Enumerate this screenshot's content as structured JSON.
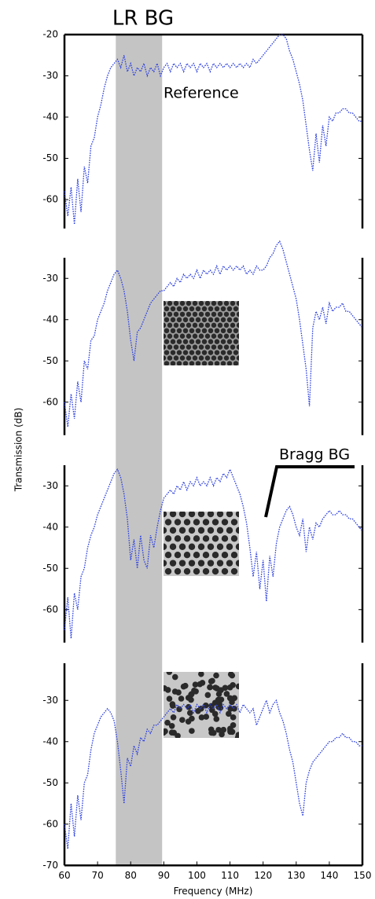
{
  "ylabel": "Transmission (dB)",
  "shaded_band": {
    "xlim": [
      75.5,
      89.5
    ],
    "label": "LR BG"
  },
  "chart_data": [
    {
      "type": "line",
      "annotation": "Reference",
      "color": "#2b3fe0",
      "xlim": [
        60,
        150
      ],
      "ylim": [
        -67,
        -20
      ],
      "yticks": [
        -20,
        -30,
        -40,
        -50,
        -60
      ],
      "x": [
        60,
        61,
        62,
        63,
        64,
        65,
        66,
        67,
        68,
        69,
        70,
        71,
        72,
        73,
        74,
        75,
        76,
        77,
        78,
        79,
        80,
        81,
        82,
        83,
        84,
        85,
        86,
        87,
        88,
        89,
        90,
        91,
        92,
        93,
        94,
        95,
        96,
        97,
        98,
        99,
        100,
        101,
        102,
        103,
        104,
        105,
        106,
        107,
        108,
        109,
        110,
        111,
        112,
        113,
        114,
        115,
        116,
        117,
        118,
        119,
        120,
        121,
        122,
        123,
        124,
        125,
        126,
        127,
        128,
        129,
        130,
        131,
        132,
        133,
        134,
        135,
        136,
        137,
        138,
        139,
        140,
        141,
        142,
        143,
        144,
        145,
        146,
        147,
        148,
        149,
        150
      ],
      "values": [
        -58,
        -64,
        -57,
        -66,
        -55,
        -63,
        -52,
        -56,
        -47,
        -45,
        -40,
        -37,
        -33,
        -30,
        -28,
        -27,
        -26,
        -28,
        -25,
        -29,
        -27,
        -30,
        -28,
        -29,
        -27,
        -30,
        -28,
        -29,
        -27,
        -30,
        -28,
        -27,
        -29,
        -27,
        -28,
        -27,
        -29,
        -27,
        -28,
        -27,
        -29,
        -27,
        -28,
        -27,
        -29,
        -27,
        -28,
        -27,
        -28,
        -27,
        -28,
        -27,
        -28,
        -27,
        -28,
        -27,
        -28,
        -26,
        -27,
        -26,
        -25,
        -24,
        -23,
        -22,
        -21,
        -20,
        -20,
        -21,
        -24,
        -26,
        -29,
        -32,
        -36,
        -42,
        -48,
        -53,
        -44,
        -51,
        -42,
        -47,
        -40,
        -41,
        -39,
        -39,
        -38,
        -38,
        -39,
        -39,
        -40,
        -41,
        -41
      ]
    },
    {
      "type": "line",
      "color": "#2b3fe0",
      "xlim": [
        60,
        150
      ],
      "ylim": [
        -68,
        -25
      ],
      "yticks": [
        -30,
        -40,
        -50,
        -60
      ],
      "x": [
        60,
        61,
        62,
        63,
        64,
        65,
        66,
        67,
        68,
        69,
        70,
        71,
        72,
        73,
        74,
        75,
        76,
        77,
        78,
        79,
        80,
        81,
        82,
        83,
        84,
        85,
        86,
        87,
        88,
        89,
        90,
        91,
        92,
        93,
        94,
        95,
        96,
        97,
        98,
        99,
        100,
        101,
        102,
        103,
        104,
        105,
        106,
        107,
        108,
        109,
        110,
        111,
        112,
        113,
        114,
        115,
        116,
        117,
        118,
        119,
        120,
        121,
        122,
        123,
        124,
        125,
        126,
        127,
        128,
        129,
        130,
        131,
        132,
        133,
        134,
        135,
        136,
        137,
        138,
        139,
        140,
        141,
        142,
        143,
        144,
        145,
        146,
        147,
        148,
        149,
        150
      ],
      "values": [
        -60,
        -66,
        -58,
        -64,
        -55,
        -60,
        -50,
        -52,
        -45,
        -44,
        -40,
        -38,
        -36,
        -33,
        -31,
        -29,
        -28,
        -30,
        -33,
        -38,
        -45,
        -50,
        -43,
        -42,
        -40,
        -38,
        -36,
        -35,
        -34,
        -33,
        -33,
        -32,
        -31,
        -32,
        -30,
        -31,
        -29,
        -30,
        -29,
        -30,
        -28,
        -30,
        -28,
        -29,
        -28,
        -29,
        -27,
        -29,
        -27,
        -28,
        -27,
        -28,
        -27,
        -28,
        -27,
        -29,
        -28,
        -29,
        -27,
        -28,
        -28,
        -27,
        -25,
        -24,
        -22,
        -21,
        -23,
        -26,
        -29,
        -32,
        -35,
        -40,
        -46,
        -52,
        -61,
        -42,
        -38,
        -40,
        -37,
        -41,
        -36,
        -38,
        -37,
        -37,
        -36,
        -38,
        -38,
        -39,
        -40,
        -41,
        -42
      ]
    },
    {
      "type": "line",
      "annotation": "Bragg BG",
      "color": "#2b3fe0",
      "xlim": [
        60,
        150
      ],
      "ylim": [
        -68,
        -25
      ],
      "yticks": [
        -30,
        -40,
        -50,
        -60
      ],
      "x": [
        60,
        61,
        62,
        63,
        64,
        65,
        66,
        67,
        68,
        69,
        70,
        71,
        72,
        73,
        74,
        75,
        76,
        77,
        78,
        79,
        80,
        81,
        82,
        83,
        84,
        85,
        86,
        87,
        88,
        89,
        90,
        91,
        92,
        93,
        94,
        95,
        96,
        97,
        98,
        99,
        100,
        101,
        102,
        103,
        104,
        105,
        106,
        107,
        108,
        109,
        110,
        111,
        112,
        113,
        114,
        115,
        116,
        117,
        118,
        119,
        120,
        121,
        122,
        123,
        124,
        125,
        126,
        127,
        128,
        129,
        130,
        131,
        132,
        133,
        134,
        135,
        136,
        137,
        138,
        139,
        140,
        141,
        142,
        143,
        144,
        145,
        146,
        147,
        148,
        149,
        150
      ],
      "values": [
        -65,
        -57,
        -67,
        -56,
        -60,
        -52,
        -50,
        -45,
        -42,
        -40,
        -37,
        -35,
        -33,
        -31,
        -29,
        -27,
        -26,
        -28,
        -32,
        -38,
        -48,
        -43,
        -50,
        -42,
        -48,
        -50,
        -42,
        -45,
        -40,
        -36,
        -33,
        -32,
        -31,
        -32,
        -30,
        -31,
        -29,
        -31,
        -29,
        -30,
        -28,
        -30,
        -29,
        -30,
        -28,
        -30,
        -28,
        -29,
        -27,
        -28,
        -26,
        -28,
        -30,
        -32,
        -35,
        -39,
        -45,
        -52,
        -46,
        -55,
        -48,
        -58,
        -47,
        -52,
        -44,
        -40,
        -38,
        -36,
        -35,
        -37,
        -40,
        -42,
        -38,
        -46,
        -40,
        -43,
        -39,
        -40,
        -38,
        -37,
        -36,
        -37,
        -37,
        -36,
        -37,
        -37,
        -38,
        -38,
        -39,
        -40,
        -41
      ]
    },
    {
      "type": "line",
      "color": "#2b3fe0",
      "xlim": [
        60,
        150
      ],
      "ylim": [
        -70,
        -21
      ],
      "yticks": [
        -30,
        -40,
        -50,
        -60,
        -70
      ],
      "xticks": [
        60,
        70,
        80,
        90,
        100,
        110,
        120,
        130,
        140,
        150
      ],
      "xlabel": "Frequency (MHz)",
      "x": [
        60,
        61,
        62,
        63,
        64,
        65,
        66,
        67,
        68,
        69,
        70,
        71,
        72,
        73,
        74,
        75,
        76,
        77,
        78,
        79,
        80,
        81,
        82,
        83,
        84,
        85,
        86,
        87,
        88,
        89,
        90,
        91,
        92,
        93,
        94,
        95,
        96,
        97,
        98,
        99,
        100,
        101,
        102,
        103,
        104,
        105,
        106,
        107,
        108,
        109,
        110,
        111,
        112,
        113,
        114,
        115,
        116,
        117,
        118,
        119,
        120,
        121,
        122,
        123,
        124,
        125,
        126,
        127,
        128,
        129,
        130,
        131,
        132,
        133,
        134,
        135,
        136,
        137,
        138,
        139,
        140,
        141,
        142,
        143,
        144,
        145,
        146,
        147,
        148,
        149,
        150
      ],
      "values": [
        -60,
        -66,
        -55,
        -63,
        -53,
        -59,
        -50,
        -48,
        -42,
        -38,
        -36,
        -34,
        -33,
        -32,
        -33,
        -35,
        -40,
        -47,
        -55,
        -44,
        -46,
        -41,
        -43,
        -39,
        -40,
        -37,
        -38,
        -36,
        -36,
        -35,
        -34,
        -33,
        -32,
        -33,
        -31,
        -32,
        -31,
        -32,
        -31,
        -33,
        -31,
        -32,
        -31,
        -33,
        -31,
        -32,
        -31,
        -33,
        -31,
        -32,
        -31,
        -32,
        -31,
        -33,
        -31,
        -32,
        -33,
        -32,
        -36,
        -34,
        -32,
        -30,
        -33,
        -31,
        -30,
        -33,
        -35,
        -38,
        -42,
        -45,
        -50,
        -55,
        -58,
        -50,
        -47,
        -45,
        -44,
        -43,
        -42,
        -41,
        -40,
        -40,
        -39,
        -39,
        -38,
        -39,
        -39,
        -40,
        -40,
        -41,
        -41
      ]
    }
  ]
}
